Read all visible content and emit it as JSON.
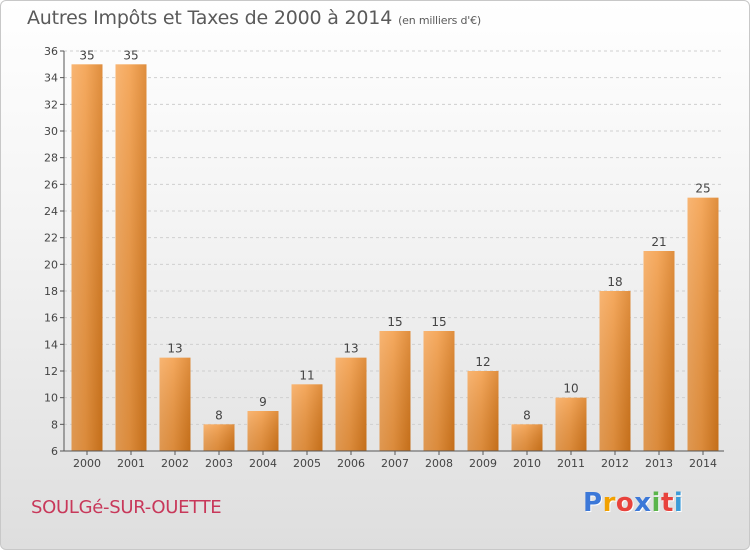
{
  "header": {
    "title": "Autres Impôts et Taxes de 2000 à 2014",
    "unit": "(en milliers d'€)"
  },
  "footer": {
    "city": "SOULGé-SUR-OUETTE",
    "logo_letters": [
      "P",
      "r",
      "o",
      "x",
      "i",
      "t",
      "i"
    ],
    "logo_colors": [
      "#3c78d8",
      "#f2a100",
      "#e8423c",
      "#3c78d8",
      "#5bb54a",
      "#e8423c",
      "#3c9bd8"
    ]
  },
  "chart_data": {
    "type": "bar",
    "title": "Autres Impôts et Taxes de 2000 à 2014",
    "categories": [
      "2000",
      "2001",
      "2002",
      "2003",
      "2004",
      "2005",
      "2006",
      "2007",
      "2008",
      "2009",
      "2010",
      "2011",
      "2012",
      "2013",
      "2014"
    ],
    "values": [
      35,
      35,
      13,
      8,
      9,
      11,
      13,
      15,
      15,
      12,
      8,
      10,
      18,
      21,
      25
    ],
    "ylim": [
      6,
      36
    ],
    "yticks": [
      6,
      8,
      10,
      12,
      14,
      16,
      18,
      20,
      22,
      24,
      26,
      28,
      30,
      32,
      34,
      36
    ],
    "grid": true,
    "bar_color": "#f08a2a"
  }
}
